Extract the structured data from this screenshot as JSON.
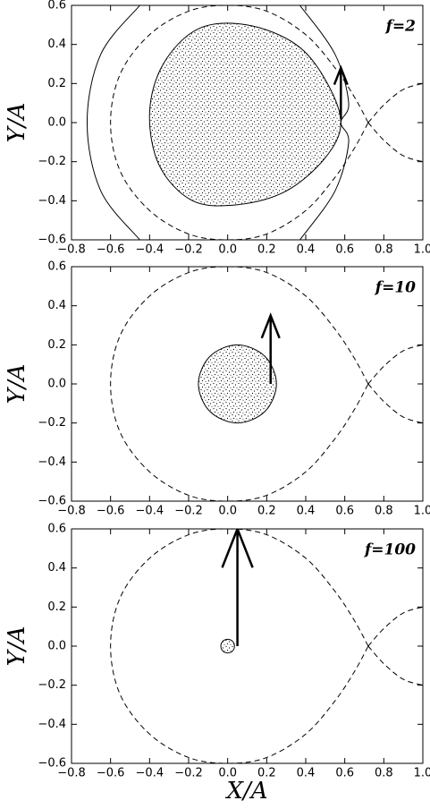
{
  "chart_data": [
    {
      "type": "line",
      "annotation": "f=2",
      "ylabel": "Y/A",
      "xlim": [
        -0.8,
        1.0
      ],
      "ylim": [
        -0.6,
        0.6
      ],
      "xticks": [
        {
          "value": -0.8,
          "label": "−0.8"
        },
        {
          "value": -0.6,
          "label": "−0.6"
        },
        {
          "value": -0.4,
          "label": "−0.4"
        },
        {
          "value": -0.2,
          "label": "−0.2"
        },
        {
          "value": 0,
          "label": "0.0"
        },
        0.2,
        0.4,
        0.6,
        0.8,
        {
          "value": 1,
          "label": "1.0"
        }
      ],
      "yticks": [
        {
          "value": -0.6,
          "label": "−0.6"
        },
        {
          "value": -0.4,
          "label": "−0.4"
        },
        {
          "value": -0.2,
          "label": "−0.2"
        },
        {
          "value": 0,
          "label": "0.0"
        },
        0.2,
        0.4,
        0.6
      ],
      "series": [
        {
          "style": "dashed",
          "x": [
            0.72,
            0.65,
            0.55,
            0.4,
            0.2,
            0,
            -0.2,
            -0.4,
            -0.55,
            -0.6,
            -0.55,
            -0.4,
            -0.2,
            0,
            0.2,
            0.4,
            0.55,
            0.65,
            0.72,
            null,
            0.72,
            0.8,
            0.9,
            1.0,
            null,
            0.72,
            0.8,
            0.9,
            1.0
          ],
          "values": [
            0,
            0.13,
            0.28,
            0.45,
            0.57,
            0.6,
            0.57,
            0.45,
            0.25,
            0,
            -0.25,
            -0.45,
            -0.57,
            -0.6,
            -0.57,
            -0.45,
            -0.28,
            -0.13,
            0,
            null,
            0,
            0.09,
            0.17,
            0.2,
            null,
            0,
            -0.09,
            -0.17,
            -0.2
          ]
        },
        {
          "style": "solid",
          "x": [
            -0.45,
            -0.65,
            -0.72,
            -0.65,
            -0.45,
            null,
            0.37,
            0.55,
            0.62,
            0.58,
            0.62,
            0.55,
            0.37
          ],
          "values": [
            0.6,
            0.35,
            0,
            -0.35,
            -0.6,
            null,
            0.6,
            0.35,
            0.1,
            0,
            -0.1,
            -0.35,
            -0.6
          ]
        },
        {
          "style": "disk",
          "x": [
            0.58,
            0.5,
            0.35,
            0.1,
            -0.15,
            -0.33,
            -0.4,
            -0.35,
            -0.18,
            0.05,
            0.3,
            0.5
          ],
          "values": [
            0,
            0.22,
            0.4,
            0.5,
            0.48,
            0.3,
            0.05,
            -0.22,
            -0.4,
            -0.42,
            -0.35,
            -0.18
          ]
        },
        {
          "style": "arrow",
          "x": [
            0.58,
            0.58
          ],
          "values": [
            0.02,
            0.28
          ]
        }
      ]
    },
    {
      "type": "line",
      "annotation": "f=10",
      "ylabel": "Y/A",
      "xlim": [
        -0.8,
        1.0
      ],
      "ylim": [
        -0.6,
        0.6
      ],
      "xticks": [
        {
          "value": -0.8,
          "label": "−0.8"
        },
        {
          "value": -0.6,
          "label": "−0.6"
        },
        {
          "value": -0.4,
          "label": "−0.4"
        },
        {
          "value": -0.2,
          "label": "−0.2"
        },
        {
          "value": 0,
          "label": "0.0"
        },
        0.2,
        0.4,
        0.6,
        0.8,
        {
          "value": 1,
          "label": "1.0"
        }
      ],
      "yticks": [
        {
          "value": -0.6,
          "label": "−0.6"
        },
        {
          "value": -0.4,
          "label": "−0.4"
        },
        {
          "value": -0.2,
          "label": "−0.2"
        },
        {
          "value": 0,
          "label": "0.0"
        },
        0.2,
        0.4,
        0.6
      ],
      "series": [
        {
          "style": "dashed",
          "x": [
            0.72,
            0.65,
            0.55,
            0.4,
            0.2,
            0,
            -0.2,
            -0.4,
            -0.55,
            -0.6,
            -0.55,
            -0.4,
            -0.2,
            0,
            0.2,
            0.4,
            0.55,
            0.65,
            0.72,
            null,
            0.72,
            0.8,
            0.9,
            1.0,
            null,
            0.72,
            0.8,
            0.9,
            1.0
          ],
          "values": [
            0,
            0.13,
            0.28,
            0.45,
            0.57,
            0.6,
            0.57,
            0.45,
            0.25,
            0,
            -0.25,
            -0.45,
            -0.57,
            -0.6,
            -0.57,
            -0.45,
            -0.28,
            -0.13,
            0,
            null,
            0,
            0.09,
            0.17,
            0.2,
            null,
            0,
            -0.09,
            -0.17,
            -0.2
          ]
        },
        {
          "style": "disk",
          "x": [
            0.25,
            0.191,
            0.05,
            -0.091,
            -0.15,
            -0.091,
            0.05,
            0.191
          ],
          "values": [
            0,
            0.141,
            0.2,
            0.141,
            0,
            -0.141,
            -0.2,
            -0.141
          ]
        },
        {
          "style": "arrow",
          "x": [
            0.22,
            0.22
          ],
          "values": [
            0,
            0.35
          ]
        }
      ]
    },
    {
      "type": "line",
      "annotation": "f=100",
      "ylabel": "Y/A",
      "xlabel": "X/A",
      "xlim": [
        -0.8,
        1.0
      ],
      "ylim": [
        -0.6,
        0.6
      ],
      "xticks": [
        {
          "value": -0.8,
          "label": "−0.8"
        },
        {
          "value": -0.6,
          "label": "−0.6"
        },
        {
          "value": -0.4,
          "label": "−0.4"
        },
        {
          "value": -0.2,
          "label": "−0.2"
        },
        {
          "value": 0,
          "label": "0.0"
        },
        0.2,
        0.4,
        0.6,
        0.8,
        {
          "value": 1,
          "label": "1.0"
        }
      ],
      "yticks": [
        {
          "value": -0.6,
          "label": "−0.6"
        },
        {
          "value": -0.4,
          "label": "−0.4"
        },
        {
          "value": -0.2,
          "label": "−0.2"
        },
        {
          "value": 0,
          "label": "0.0"
        },
        0.2,
        0.4,
        0.6
      ],
      "series": [
        {
          "style": "dashed",
          "x": [
            0.72,
            0.65,
            0.55,
            0.4,
            0.2,
            0,
            -0.2,
            -0.4,
            -0.55,
            -0.6,
            -0.55,
            -0.4,
            -0.2,
            0,
            0.2,
            0.4,
            0.55,
            0.65,
            0.72,
            null,
            0.72,
            0.8,
            0.9,
            1.0,
            null,
            0.72,
            0.8,
            0.9,
            1.0
          ],
          "values": [
            0,
            0.13,
            0.28,
            0.45,
            0.57,
            0.6,
            0.57,
            0.45,
            0.25,
            0,
            -0.25,
            -0.45,
            -0.57,
            -0.6,
            -0.57,
            -0.45,
            -0.28,
            -0.13,
            0,
            null,
            0,
            0.09,
            0.17,
            0.2,
            null,
            0,
            -0.09,
            -0.17,
            -0.2
          ]
        },
        {
          "style": "disk",
          "x": [
            0.035,
            0.025,
            0,
            -0.025,
            -0.035,
            -0.025,
            0,
            0.025
          ],
          "values": [
            0,
            0.025,
            0.035,
            0.025,
            0,
            -0.025,
            -0.035,
            -0.025
          ]
        },
        {
          "style": "arrow",
          "x": [
            0.05,
            0.05
          ],
          "values": [
            0,
            0.6
          ]
        }
      ]
    }
  ]
}
